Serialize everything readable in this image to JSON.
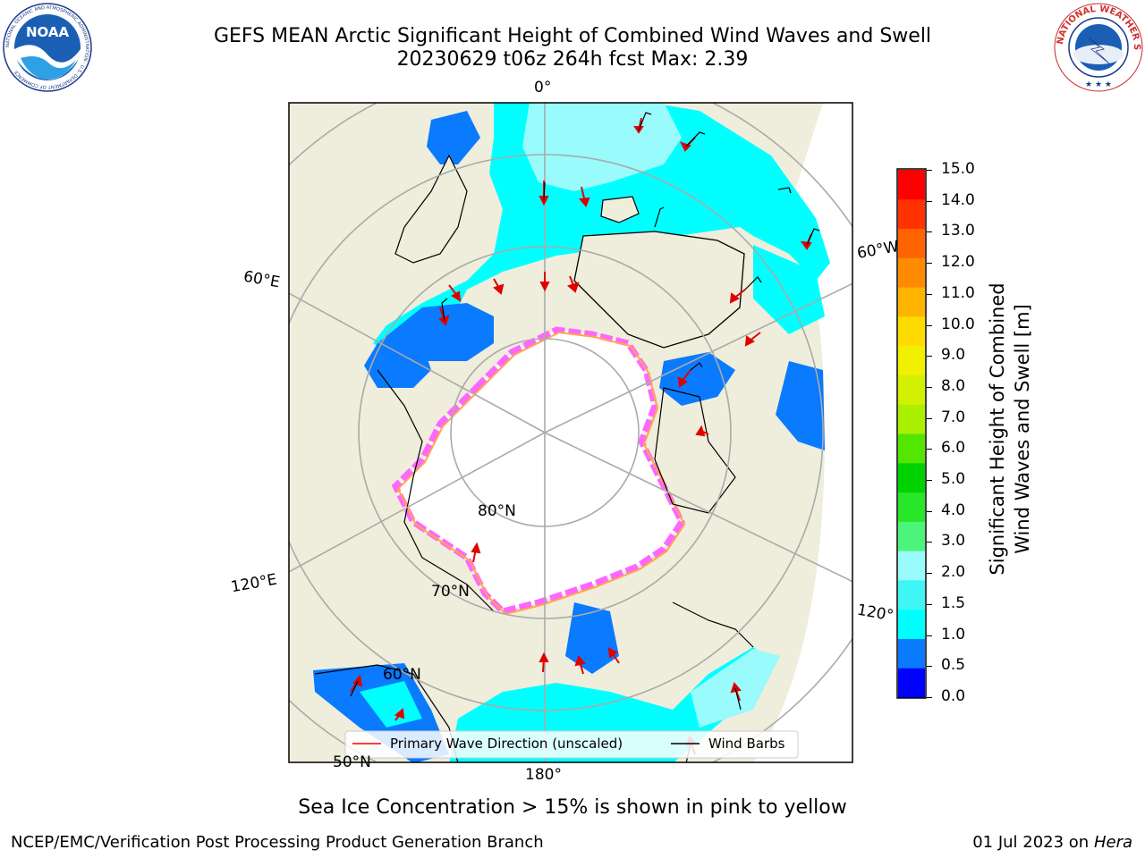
{
  "title": {
    "line1": "GEFS MEAN Arctic Significant Height of Combined Wind Waves and Swell",
    "line2": "20230629 t06z 264h fcst   Max: 2.39"
  },
  "logos": {
    "left": {
      "text": "NOAA",
      "ring_text": "NATIONAL OCEANIC AND ATMOSPHERIC ADMINISTRATION · U.S. DEPARTMENT OF COMMERCE"
    },
    "right": {
      "ring_text": "NATIONAL WEATHER SERVICE"
    }
  },
  "map": {
    "lon_labels": {
      "top": "0°",
      "left_upper": "60°E",
      "left_lower": "120°E",
      "right_upper": "60°W",
      "right_lower": "120°",
      "bottom": "180°"
    },
    "lat_labels": {
      "inner": "80°N",
      "middle": "70°N",
      "outer": "60°N",
      "edge": "50°N"
    },
    "legend": {
      "wave_direction": "Primary Wave Direction (unscaled)",
      "wind_barbs": "Wind Barbs"
    }
  },
  "colorbar": {
    "label_line1": "Significant Height of Combined",
    "label_line2": "Wind Waves and Swell [m]",
    "ticks": [
      "0.0",
      "0.5",
      "1.0",
      "1.5",
      "2.0",
      "3.0",
      "4.0",
      "5.0",
      "6.0",
      "7.0",
      "8.0",
      "9.0",
      "10.0",
      "11.0",
      "12.0",
      "13.0",
      "14.0",
      "15.0"
    ],
    "colors": [
      "#0000ff",
      "#0a7aff",
      "#00ffff",
      "#3ff5f5",
      "#99fbfb",
      "#4cf57a",
      "#28e628",
      "#00d200",
      "#52e600",
      "#aaf000",
      "#d2f000",
      "#f0f000",
      "#ffdc00",
      "#ffb400",
      "#ff8c00",
      "#ff6400",
      "#ff3200",
      "#ff0000"
    ]
  },
  "ice_note": "Sea Ice Concentration > 15% is shown in pink to yellow",
  "footer": {
    "left": "NCEP/EMC/Verification Post Processing Product Generation Branch",
    "right_date": "01 Jul 2023 on",
    "right_host": "Hera"
  }
}
